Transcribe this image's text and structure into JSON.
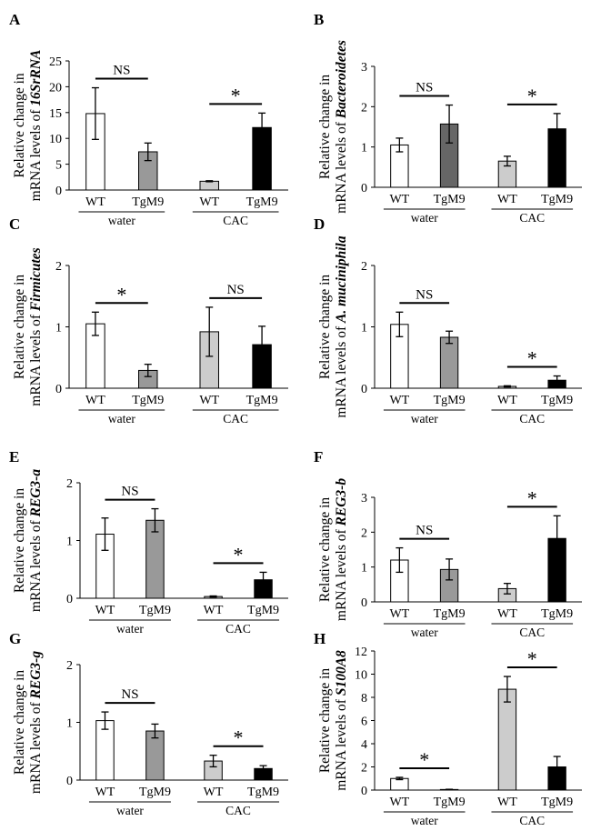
{
  "chart_data": [
    {
      "panel": "A",
      "type": "bar",
      "ylabel_prefix": "Relative change in",
      "ylabel_line2": "mRNA levels of ",
      "gene": "16SrRNA",
      "ylim": [
        0,
        25
      ],
      "yticks": [
        "0",
        "5",
        "10",
        "15",
        "20",
        "25"
      ],
      "categories": [
        "WT",
        "TgM9",
        "WT",
        "TgM9"
      ],
      "groups": [
        "water",
        "CAC"
      ],
      "values": [
        14.8,
        7.4,
        1.7,
        12.1
      ],
      "errors": [
        5.0,
        1.7,
        0.1,
        2.8
      ],
      "colors": [
        "#ffffff",
        "#999999",
        "#cccccc",
        "#000000"
      ],
      "annotations": [
        {
          "group": 0,
          "text": "NS"
        },
        {
          "group": 1,
          "text": "*"
        }
      ]
    },
    {
      "panel": "B",
      "type": "bar",
      "ylabel_prefix": "Relative change in",
      "ylabel_line2": "mRNA levels of ",
      "gene": "Bacteroidetes",
      "ylim": [
        0,
        3
      ],
      "yticks": [
        "0",
        "1",
        "2",
        "3"
      ],
      "categories": [
        "WT",
        "TgM9",
        "WT",
        "TgM9"
      ],
      "groups": [
        "water",
        "CAC"
      ],
      "values": [
        1.05,
        1.57,
        0.65,
        1.45
      ],
      "errors": [
        0.17,
        0.47,
        0.12,
        0.38
      ],
      "colors": [
        "#ffffff",
        "#666666",
        "#cccccc",
        "#000000"
      ],
      "annotations": [
        {
          "group": 0,
          "text": "NS"
        },
        {
          "group": 1,
          "text": "*"
        }
      ]
    },
    {
      "panel": "C",
      "type": "bar",
      "ylabel_prefix": "Relative change in",
      "ylabel_line2": "mRNA levels of ",
      "gene": "Firmicutes",
      "ylim": [
        0,
        2
      ],
      "yticks": [
        "0",
        "1",
        "2"
      ],
      "categories": [
        "WT",
        "TgM9",
        "WT",
        "TgM9"
      ],
      "groups": [
        "water",
        "CAC"
      ],
      "values": [
        1.05,
        0.29,
        0.92,
        0.71
      ],
      "errors": [
        0.19,
        0.1,
        0.4,
        0.3
      ],
      "colors": [
        "#ffffff",
        "#999999",
        "#cccccc",
        "#000000"
      ],
      "annotations": [
        {
          "group": 0,
          "text": "*"
        },
        {
          "group": 1,
          "text": "NS"
        }
      ]
    },
    {
      "panel": "D",
      "type": "bar",
      "ylabel_prefix": "Relative change in",
      "ylabel_line2": "mRNA levels of ",
      "gene": "A. muciniphila",
      "ylim": [
        0,
        2
      ],
      "yticks": [
        "0",
        "1",
        "2"
      ],
      "categories": [
        "WT",
        "TgM9",
        "WT",
        "TgM9"
      ],
      "groups": [
        "water",
        "CAC"
      ],
      "values": [
        1.04,
        0.83,
        0.03,
        0.13
      ],
      "errors": [
        0.2,
        0.1,
        0.01,
        0.07
      ],
      "colors": [
        "#ffffff",
        "#999999",
        "#cccccc",
        "#000000"
      ],
      "annotations": [
        {
          "group": 0,
          "text": "NS"
        },
        {
          "group": 1,
          "text": "*"
        }
      ]
    },
    {
      "panel": "E",
      "type": "bar",
      "ylabel_prefix": "Relative change in",
      "ylabel_line2": "mRNA levels of ",
      "gene": "REG3-a",
      "ylim": [
        0,
        2
      ],
      "yticks": [
        "0",
        "1",
        "2"
      ],
      "categories": [
        "WT",
        "TgM9",
        "WT",
        "TgM9"
      ],
      "groups": [
        "water",
        "CAC"
      ],
      "values": [
        1.11,
        1.35,
        0.03,
        0.32
      ],
      "errors": [
        0.28,
        0.2,
        0.01,
        0.13
      ],
      "colors": [
        "#ffffff",
        "#999999",
        "#cccccc",
        "#000000"
      ],
      "annotations": [
        {
          "group": 0,
          "text": "NS"
        },
        {
          "group": 1,
          "text": "*"
        }
      ]
    },
    {
      "panel": "F",
      "type": "bar",
      "ylabel_prefix": "Relative change in",
      "ylabel_line2": "mRNA levels of ",
      "gene": "REG3-b",
      "ylim": [
        0,
        3
      ],
      "yticks": [
        "0",
        "1",
        "2",
        "3"
      ],
      "categories": [
        "WT",
        "TgM9",
        "WT",
        "TgM9"
      ],
      "groups": [
        "water",
        "CAC"
      ],
      "values": [
        1.2,
        0.93,
        0.38,
        1.82
      ],
      "errors": [
        0.35,
        0.3,
        0.15,
        0.65
      ],
      "colors": [
        "#ffffff",
        "#999999",
        "#cccccc",
        "#000000"
      ],
      "annotations": [
        {
          "group": 0,
          "text": "NS"
        },
        {
          "group": 1,
          "text": "*"
        }
      ]
    },
    {
      "panel": "G",
      "type": "bar",
      "ylabel_prefix": "Relative change in",
      "ylabel_line2": "mRNA levels of ",
      "gene": "REG3-g",
      "ylim": [
        0,
        2
      ],
      "yticks": [
        "0",
        "1",
        "2"
      ],
      "categories": [
        "WT",
        "TgM9",
        "WT",
        "TgM9"
      ],
      "groups": [
        "water",
        "CAC"
      ],
      "values": [
        1.03,
        0.85,
        0.33,
        0.2
      ],
      "errors": [
        0.15,
        0.12,
        0.1,
        0.05
      ],
      "colors": [
        "#ffffff",
        "#999999",
        "#cccccc",
        "#000000"
      ],
      "annotations": [
        {
          "group": 0,
          "text": "NS"
        },
        {
          "group": 1,
          "text": "*"
        }
      ]
    },
    {
      "panel": "H",
      "type": "bar",
      "ylabel_prefix": "Relative change in",
      "ylabel_line2": "mRNA levels of ",
      "gene": "S100A8",
      "ylim": [
        0,
        12
      ],
      "yticks": [
        "0",
        "2",
        "4",
        "6",
        "8",
        "10",
        "12"
      ],
      "categories": [
        "WT",
        "TgM9",
        "WT",
        "TgM9"
      ],
      "groups": [
        "water",
        "CAC"
      ],
      "values": [
        1.0,
        0.05,
        8.7,
        2.0
      ],
      "errors": [
        0.1,
        0.02,
        1.1,
        0.9
      ],
      "colors": [
        "#ffffff",
        "#999999",
        "#cccccc",
        "#000000"
      ],
      "annotations": [
        {
          "group": 0,
          "text": "*"
        },
        {
          "group": 1,
          "text": "*"
        }
      ]
    }
  ]
}
